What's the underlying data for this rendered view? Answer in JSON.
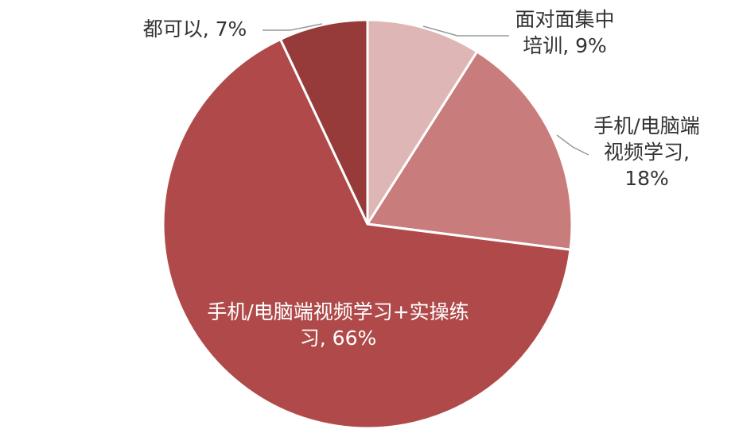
{
  "chart_data": {
    "type": "pie",
    "categories": [
      "面对面集中培训",
      "手机/电脑端视频学习",
      "手机/电脑端视频学习+实操练习",
      "都可以"
    ],
    "values": [
      9,
      18,
      66,
      7
    ],
    "value_labels": [
      ", 9%",
      ", 18%",
      ", 66%",
      ", 7%"
    ],
    "colors": [
      "#dfb6b6",
      "#c97c7c",
      "#b04a4a",
      "#963a3a"
    ]
  }
}
